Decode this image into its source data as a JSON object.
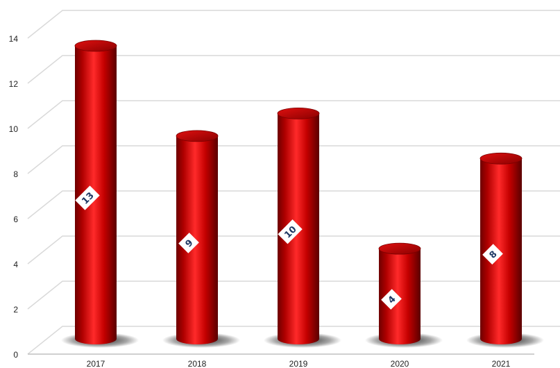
{
  "chart_data": {
    "type": "bar",
    "style": "3d-cylinder",
    "categories": [
      "2017",
      "2018",
      "2019",
      "2020",
      "2021"
    ],
    "values": [
      13,
      9,
      10,
      4,
      8
    ],
    "title": "",
    "xlabel": "",
    "ylabel": "",
    "ylim": [
      0,
      14
    ],
    "yticks": [
      "0",
      "2",
      "4",
      "6",
      "8",
      "10",
      "12",
      "14"
    ],
    "grid": true,
    "legend": "none",
    "data_labels": [
      "13",
      "9",
      "10",
      "4",
      "8"
    ],
    "colors": {
      "bar": "#c00000",
      "bar_dark": "#6e0000",
      "bar_light": "#ff3a3a",
      "grid": "#d9d9d9",
      "label_bg": "#ffffff",
      "label_text": "#1f3864"
    }
  }
}
